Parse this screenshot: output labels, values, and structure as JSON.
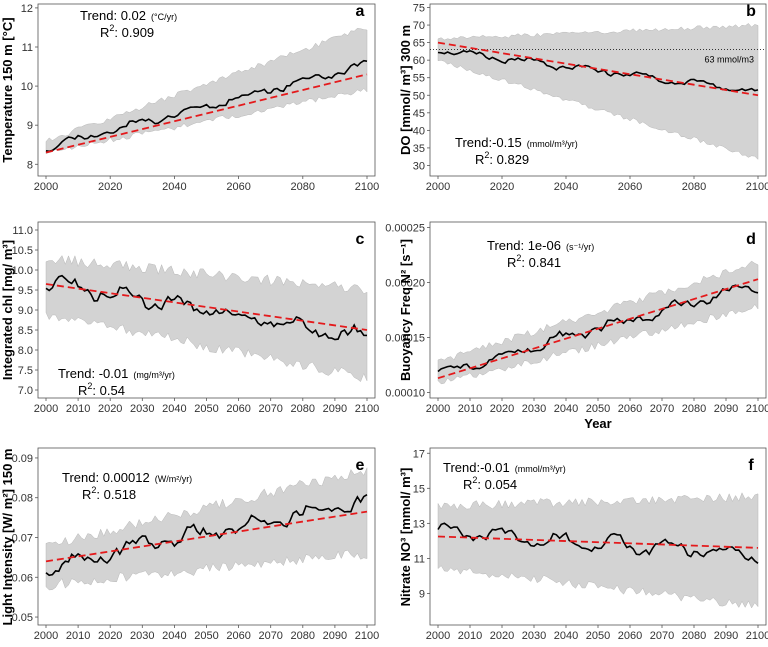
{
  "colors": {
    "band": "#d3d3d3",
    "band_stroke": "#b8b8b8",
    "line": "#000000",
    "trend": "#e41a1c",
    "axis": "#555555",
    "background": "#ffffff"
  },
  "chart_data": [
    {
      "type": "line",
      "tag": "a",
      "ylabel": "Temperature 150 m [°C]",
      "xlabel": "",
      "xlim": [
        2000,
        2100
      ],
      "ylim": [
        7.7,
        12.1
      ],
      "xticks": [
        2000,
        2020,
        2040,
        2060,
        2080,
        2100
      ],
      "xtick_labels": [
        "2000",
        "2020",
        "2040",
        "2060",
        "2080",
        "2100"
      ],
      "yticks": [
        8,
        9,
        10,
        11,
        12
      ],
      "ytick_labels": [
        "8",
        "9",
        "10",
        "11",
        "12"
      ],
      "series_start": 8.45,
      "series_end": 10.55,
      "trend_start": 8.3,
      "trend_end": 10.3,
      "band_lower_start": 8.3,
      "band_lower_end": 9.9,
      "band_upper_start": 8.6,
      "band_upper_end": 11.5,
      "noise": 0.15,
      "seed": 11,
      "trend_label": "Trend: 0.02",
      "trend_unit": "(°C/yr)",
      "r2_label": "R",
      "r2_sup": "2",
      "r2_value": ": 0.909",
      "text_corner": "top-left"
    },
    {
      "type": "line",
      "tag": "b",
      "ylabel": "DO [mmol/ m³] 300 m",
      "xlabel": "",
      "xlim": [
        2000,
        2100
      ],
      "ylim": [
        27,
        76
      ],
      "xticks": [
        2000,
        2020,
        2040,
        2060,
        2080,
        2100
      ],
      "xtick_labels": [
        "2000",
        "2020",
        "2040",
        "2060",
        "2080",
        "2100"
      ],
      "yticks": [
        30,
        35,
        40,
        45,
        50,
        55,
        60,
        65,
        70,
        75
      ],
      "ytick_labels": [
        "30",
        "35",
        "40",
        "45",
        "50",
        "55",
        "60",
        "65",
        "70",
        "75"
      ],
      "series_start": 63,
      "series_end": 51,
      "trend_start": 65,
      "trend_end": 50,
      "band_lower_start": 60,
      "band_lower_end": 32,
      "band_upper_start": 66,
      "band_upper_end": 70,
      "noise": 1.3,
      "seed": 23,
      "reference_line": {
        "value": 63,
        "label": "63 mmol/m3"
      },
      "trend_label": "Trend:-0.15",
      "trend_unit": "(mmol/m³/yr)",
      "r2_label": "R",
      "r2_sup": "2",
      "r2_value": ": 0.829",
      "text_corner": "bottom-left"
    },
    {
      "type": "line",
      "tag": "c",
      "ylabel": "Integrated chl [mg/ m³]",
      "xlabel": "",
      "xlim": [
        2000,
        2100
      ],
      "ylim": [
        6.8,
        11.2
      ],
      "xticks": [
        2000,
        2010,
        2020,
        2030,
        2040,
        2050,
        2060,
        2070,
        2080,
        2090,
        2100
      ],
      "xtick_labels": [
        "2000",
        "2010",
        "2020",
        "2030",
        "2040",
        "2050",
        "2060",
        "2070",
        "2080",
        "2090",
        "2100"
      ],
      "yticks": [
        7.0,
        7.5,
        8.0,
        8.5,
        9.0,
        9.5,
        10.0,
        10.5,
        11.0
      ],
      "ytick_labels": [
        "7.0",
        "7.5",
        "8.0",
        "8.5",
        "9.0",
        "9.5",
        "10.0",
        "10.5",
        "11.0"
      ],
      "series_start": 9.7,
      "series_end": 8.3,
      "trend_start": 9.65,
      "trend_end": 8.5,
      "band_lower_start": 8.9,
      "band_lower_end": 7.3,
      "band_upper_start": 10.3,
      "band_upper_end": 9.5,
      "noise": 0.3,
      "seed": 37,
      "trend_label": "Trend: -0.01",
      "trend_unit": "(mg/m³/yr)",
      "r2_label": "R",
      "r2_sup": "2",
      "r2_value": ": 0.54",
      "text_corner": "bottom-left"
    },
    {
      "type": "line",
      "tag": "d",
      "ylabel": "Buoyancy Freq  N² [s⁻¹]",
      "xlabel": "Year",
      "xlim": [
        2000,
        2100
      ],
      "ylim": [
        9.5e-05,
        0.000255
      ],
      "xticks": [
        2000,
        2010,
        2020,
        2030,
        2040,
        2050,
        2060,
        2070,
        2080,
        2090,
        2100
      ],
      "xtick_labels": [
        "2000",
        "2010",
        "2020",
        "2030",
        "2040",
        "2050",
        "2060",
        "2070",
        "2080",
        "2090",
        "2100"
      ],
      "yticks": [
        0.0001,
        0.00015,
        0.0002,
        0.00025
      ],
      "ytick_labels": [
        "0.00010",
        "0.00015",
        "0.00020",
        "0.00025"
      ],
      "series_start": 0.000118,
      "series_end": 0.000198,
      "trend_start": 0.000113,
      "trend_end": 0.000203,
      "band_lower_start": 0.000108,
      "band_lower_end": 0.000178,
      "band_upper_start": 0.000128,
      "band_upper_end": 0.000218,
      "noise": 7.5e-06,
      "seed": 51,
      "trend_label": "Trend: 1e-06",
      "trend_unit": "(s⁻¹/yr)",
      "r2_label": "R",
      "r2_sup": "2",
      "r2_value": ": 0.841",
      "text_corner": "top-left"
    },
    {
      "type": "line",
      "tag": "e",
      "ylabel": "Light Intensity [W/ m²] 150 m",
      "xlabel": "",
      "xlim": [
        2000,
        2100
      ],
      "ylim": [
        0.048,
        0.0925
      ],
      "xticks": [
        2000,
        2010,
        2020,
        2030,
        2040,
        2050,
        2060,
        2070,
        2080,
        2090,
        2100
      ],
      "xtick_labels": [
        "2000",
        "2010",
        "2020",
        "2030",
        "2040",
        "2050",
        "2060",
        "2070",
        "2080",
        "2090",
        "2100"
      ],
      "yticks": [
        0.05,
        0.06,
        0.07,
        0.08,
        0.09
      ],
      "ytick_labels": [
        "0.05",
        "0.06",
        "0.07",
        "0.08",
        "0.09"
      ],
      "series_start": 0.063,
      "series_end": 0.079,
      "trend_start": 0.064,
      "trend_end": 0.0765,
      "band_lower_start": 0.058,
      "band_lower_end": 0.066,
      "band_upper_start": 0.068,
      "band_upper_end": 0.087,
      "noise": 0.003,
      "seed": 67,
      "trend_label": "Trend: 0.00012",
      "trend_unit": "(W/m²/yr)",
      "r2_label": "R",
      "r2_sup": "2",
      "r2_value": ": 0.518",
      "text_corner": "top-left"
    },
    {
      "type": "line",
      "tag": "f",
      "ylabel": "Nitrate NO³ [mmol/ m³]",
      "xlabel": "",
      "xlim": [
        2000,
        2100
      ],
      "ylim": [
        7.2,
        17.3
      ],
      "xticks": [
        2000,
        2010,
        2020,
        2030,
        2040,
        2050,
        2060,
        2070,
        2080,
        2090,
        2100
      ],
      "xtick_labels": [
        "2000",
        "2010",
        "2020",
        "2030",
        "2040",
        "2050",
        "2060",
        "2070",
        "2080",
        "2090",
        "2100"
      ],
      "yticks": [
        9,
        11,
        13,
        15,
        17
      ],
      "ytick_labels": [
        "9",
        "11",
        "13",
        "15",
        "17"
      ],
      "series_start": 12.5,
      "series_end": 11.2,
      "trend_start": 12.25,
      "trend_end": 11.6,
      "band_lower_start": 10.5,
      "band_lower_end": 8.3,
      "band_upper_start": 14.0,
      "band_upper_end": 14.5,
      "noise": 0.6,
      "seed": 89,
      "trend_label": "Trend:-0.01",
      "trend_unit": "(mmol/m³/yr)",
      "r2_label": "R",
      "r2_sup": "2",
      "r2_value": ": 0.054",
      "text_corner": "top-left"
    }
  ]
}
